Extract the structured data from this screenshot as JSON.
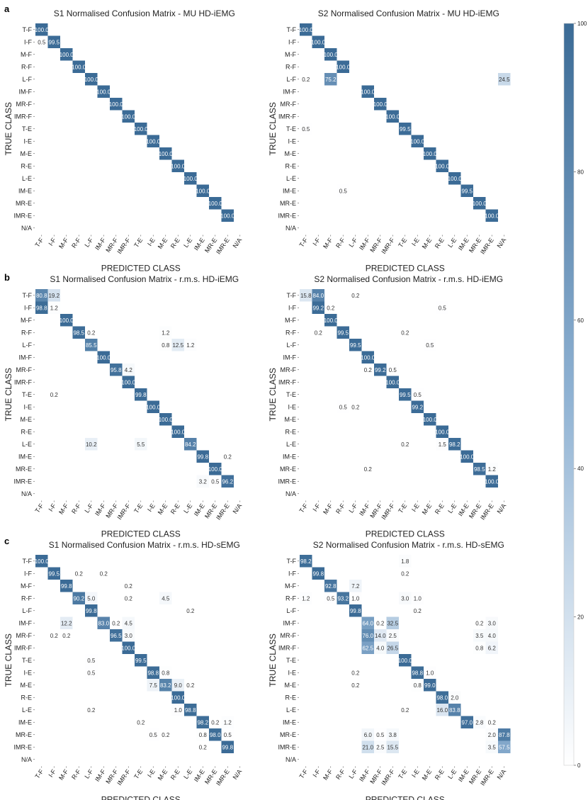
{
  "figure": {
    "panel_letters": [
      "a",
      "b",
      "c"
    ],
    "axis": {
      "xlabel": "PREDICTED CLASS",
      "ylabel": "TRUE CLASS"
    },
    "classes": [
      "T-F",
      "I-F",
      "M-F",
      "R-F",
      "L-F",
      "IM-F",
      "MR-F",
      "IMR-F",
      "T-E",
      "I-E",
      "M-E",
      "R-E",
      "L-E",
      "IM-E",
      "MR-E",
      "IMR-E",
      "N/A"
    ],
    "colorbar": {
      "min": 0,
      "max": 100,
      "ticks": [
        0,
        20,
        40,
        60,
        80,
        100
      ],
      "tick_labels": [
        "0",
        "20",
        "40",
        "60",
        "80",
        "100"
      ],
      "color_low": "#ffffff",
      "color_high": "#3b6b96"
    }
  },
  "chart_data": [
    {
      "type": "heatmap",
      "panel": "a",
      "title": "S1 Normalised Confusion Matrix - MU HD-iEMG",
      "xlabel": "PREDICTED CLASS",
      "ylabel": "TRUE CLASS",
      "cells": [
        [
          0,
          0,
          100.0
        ],
        [
          1,
          0,
          0.5
        ],
        [
          1,
          1,
          99.5
        ],
        [
          2,
          2,
          100.0
        ],
        [
          3,
          3,
          100.0
        ],
        [
          4,
          4,
          100.0
        ],
        [
          5,
          5,
          100.0
        ],
        [
          6,
          6,
          100.0
        ],
        [
          7,
          7,
          100.0
        ],
        [
          8,
          8,
          100.0
        ],
        [
          9,
          9,
          100.0
        ],
        [
          10,
          10,
          100.0
        ],
        [
          11,
          11,
          100.0
        ],
        [
          12,
          12,
          100.0
        ],
        [
          13,
          13,
          100.0
        ],
        [
          14,
          14,
          100.0
        ],
        [
          15,
          15,
          100.0
        ]
      ]
    },
    {
      "type": "heatmap",
      "panel": "a",
      "title": "S2 Normalised Confusion Matrix - MU HD-iEMG",
      "xlabel": "PREDICTED CLASS",
      "ylabel": "TRUE CLASS",
      "cells": [
        [
          0,
          0,
          100.0
        ],
        [
          1,
          1,
          100.0
        ],
        [
          2,
          2,
          100.0
        ],
        [
          3,
          3,
          100.0
        ],
        [
          4,
          0,
          0.2
        ],
        [
          4,
          2,
          75.2
        ],
        [
          4,
          16,
          24.5
        ],
        [
          5,
          5,
          100.0
        ],
        [
          6,
          6,
          100.0
        ],
        [
          7,
          7,
          100.0
        ],
        [
          8,
          0,
          0.5
        ],
        [
          8,
          8,
          99.5
        ],
        [
          9,
          9,
          100.0
        ],
        [
          10,
          10,
          100.0
        ],
        [
          11,
          11,
          100.0
        ],
        [
          12,
          12,
          100.0
        ],
        [
          13,
          3,
          0.5
        ],
        [
          13,
          13,
          99.5
        ],
        [
          14,
          14,
          100.0
        ],
        [
          15,
          15,
          100.0
        ]
      ]
    },
    {
      "type": "heatmap",
      "panel": "b",
      "title": "S1 Normalised Confusion Matrix - r.m.s. HD-iEMG",
      "xlabel": "PREDICTED CLASS",
      "ylabel": "TRUE CLASS",
      "cells": [
        [
          0,
          0,
          80.8
        ],
        [
          0,
          1,
          19.2
        ],
        [
          1,
          0,
          98.8
        ],
        [
          1,
          1,
          1.2
        ],
        [
          2,
          2,
          100.0
        ],
        [
          3,
          3,
          98.5
        ],
        [
          3,
          4,
          0.2
        ],
        [
          3,
          10,
          1.2
        ],
        [
          4,
          4,
          85.5
        ],
        [
          4,
          10,
          0.8
        ],
        [
          4,
          11,
          12.5
        ],
        [
          4,
          12,
          1.2
        ],
        [
          5,
          5,
          100.0
        ],
        [
          6,
          6,
          95.8
        ],
        [
          6,
          7,
          4.2
        ],
        [
          7,
          7,
          100.0
        ],
        [
          8,
          1,
          0.2
        ],
        [
          8,
          8,
          99.8
        ],
        [
          9,
          9,
          100.0
        ],
        [
          10,
          10,
          100.0
        ],
        [
          11,
          11,
          100.0
        ],
        [
          12,
          4,
          10.2
        ],
        [
          12,
          8,
          5.5
        ],
        [
          12,
          12,
          84.2
        ],
        [
          13,
          13,
          99.8
        ],
        [
          13,
          15,
          0.2
        ],
        [
          14,
          14,
          100.0
        ],
        [
          15,
          13,
          3.2
        ],
        [
          15,
          14,
          0.5
        ],
        [
          15,
          15,
          96.2
        ]
      ]
    },
    {
      "type": "heatmap",
      "panel": "b",
      "title": "S2 Normalised Confusion Matrix - r.m.s. HD-iEMG",
      "xlabel": "PREDICTED CLASS",
      "ylabel": "TRUE CLASS",
      "cells": [
        [
          0,
          0,
          15.8
        ],
        [
          0,
          1,
          84.0
        ],
        [
          0,
          4,
          0.2
        ],
        [
          1,
          1,
          99.2
        ],
        [
          1,
          2,
          0.2
        ],
        [
          1,
          11,
          0.5
        ],
        [
          2,
          2,
          100.0
        ],
        [
          3,
          1,
          0.2
        ],
        [
          3,
          3,
          99.5
        ],
        [
          3,
          8,
          0.2
        ],
        [
          4,
          4,
          99.5
        ],
        [
          4,
          10,
          0.5
        ],
        [
          5,
          5,
          100.0
        ],
        [
          6,
          5,
          0.2
        ],
        [
          6,
          6,
          99.2
        ],
        [
          6,
          7,
          0.5
        ],
        [
          7,
          7,
          100.0
        ],
        [
          8,
          8,
          99.5
        ],
        [
          8,
          9,
          0.5
        ],
        [
          9,
          3,
          0.5
        ],
        [
          9,
          4,
          0.2
        ],
        [
          9,
          9,
          99.2
        ],
        [
          10,
          10,
          100.0
        ],
        [
          11,
          11,
          100.0
        ],
        [
          12,
          8,
          0.2
        ],
        [
          12,
          11,
          1.5
        ],
        [
          12,
          12,
          98.2
        ],
        [
          13,
          13,
          100.0
        ],
        [
          14,
          5,
          0.2
        ],
        [
          14,
          14,
          98.5
        ],
        [
          14,
          15,
          1.2
        ],
        [
          15,
          15,
          100.0
        ]
      ]
    },
    {
      "type": "heatmap",
      "panel": "c",
      "title": "S1 Normalised Confusion Matrix - r.m.s. HD-sEMG",
      "xlabel": "PREDICTED CLASS",
      "ylabel": "TRUE CLASS",
      "cells": [
        [
          0,
          0,
          100.0
        ],
        [
          1,
          1,
          99.5
        ],
        [
          1,
          3,
          0.2
        ],
        [
          1,
          5,
          0.2
        ],
        [
          2,
          2,
          99.8
        ],
        [
          2,
          7,
          0.2
        ],
        [
          3,
          3,
          90.2
        ],
        [
          3,
          4,
          5.0
        ],
        [
          3,
          7,
          0.2
        ],
        [
          3,
          10,
          4.5
        ],
        [
          4,
          4,
          99.8
        ],
        [
          4,
          12,
          0.2
        ],
        [
          5,
          2,
          12.2
        ],
        [
          5,
          5,
          83.0
        ],
        [
          5,
          6,
          0.2
        ],
        [
          5,
          7,
          4.5
        ],
        [
          6,
          1,
          0.2
        ],
        [
          6,
          2,
          0.2
        ],
        [
          6,
          6,
          96.5
        ],
        [
          6,
          7,
          3.0
        ],
        [
          7,
          7,
          100.0
        ],
        [
          8,
          4,
          0.5
        ],
        [
          8,
          8,
          99.5
        ],
        [
          9,
          4,
          0.5
        ],
        [
          9,
          9,
          98.8
        ],
        [
          9,
          10,
          0.8
        ],
        [
          10,
          9,
          7.5
        ],
        [
          10,
          10,
          83.2
        ],
        [
          10,
          11,
          9.0
        ],
        [
          10,
          12,
          0.2
        ],
        [
          11,
          11,
          100.0
        ],
        [
          12,
          4,
          0.2
        ],
        [
          12,
          11,
          1.0
        ],
        [
          12,
          12,
          98.8
        ],
        [
          13,
          8,
          0.2
        ],
        [
          13,
          13,
          98.2
        ],
        [
          13,
          14,
          0.2
        ],
        [
          13,
          15,
          1.2
        ],
        [
          14,
          9,
          0.5
        ],
        [
          14,
          10,
          0.2
        ],
        [
          14,
          13,
          0.8
        ],
        [
          14,
          14,
          98.0
        ],
        [
          14,
          15,
          0.5
        ],
        [
          15,
          13,
          0.2
        ],
        [
          15,
          15,
          99.8
        ]
      ]
    },
    {
      "type": "heatmap",
      "panel": "c",
      "title": "S2 Normalised Confusion Matrix - r.m.s. HD-sEMG",
      "xlabel": "PREDICTED CLASS",
      "ylabel": "TRUE CLASS",
      "cells": [
        [
          0,
          0,
          98.2
        ],
        [
          0,
          8,
          1.8
        ],
        [
          1,
          1,
          99.8
        ],
        [
          1,
          8,
          0.2
        ],
        [
          2,
          2,
          92.8
        ],
        [
          2,
          4,
          7.2
        ],
        [
          3,
          0,
          1.2
        ],
        [
          3,
          2,
          0.5
        ],
        [
          3,
          3,
          93.2
        ],
        [
          3,
          4,
          1.0
        ],
        [
          3,
          8,
          3.0
        ],
        [
          3,
          9,
          1.0
        ],
        [
          4,
          4,
          99.8
        ],
        [
          4,
          9,
          0.2
        ],
        [
          5,
          5,
          64.0
        ],
        [
          5,
          6,
          0.2
        ],
        [
          5,
          7,
          32.5
        ],
        [
          5,
          14,
          0.2
        ],
        [
          5,
          15,
          3.0
        ],
        [
          6,
          5,
          76.0
        ],
        [
          6,
          6,
          14.0
        ],
        [
          6,
          7,
          2.5
        ],
        [
          6,
          14,
          3.5
        ],
        [
          6,
          15,
          4.0
        ],
        [
          7,
          5,
          62.5
        ],
        [
          7,
          6,
          4.0
        ],
        [
          7,
          7,
          26.5
        ],
        [
          7,
          14,
          0.8
        ],
        [
          7,
          15,
          6.2
        ],
        [
          8,
          8,
          100.0
        ],
        [
          9,
          4,
          0.2
        ],
        [
          9,
          9,
          98.8
        ],
        [
          9,
          10,
          1.0
        ],
        [
          10,
          4,
          0.2
        ],
        [
          10,
          9,
          0.8
        ],
        [
          10,
          10,
          99.0
        ],
        [
          11,
          11,
          98.0
        ],
        [
          11,
          12,
          2.0
        ],
        [
          12,
          8,
          0.2
        ],
        [
          12,
          11,
          16.0
        ],
        [
          12,
          12,
          83.8
        ],
        [
          13,
          13,
          97.0
        ],
        [
          13,
          14,
          2.8
        ],
        [
          13,
          15,
          0.2
        ],
        [
          14,
          5,
          6.0
        ],
        [
          14,
          6,
          0.5
        ],
        [
          14,
          7,
          3.8
        ],
        [
          14,
          15,
          2.0
        ],
        [
          14,
          16,
          87.8
        ],
        [
          15,
          5,
          21.0
        ],
        [
          15,
          6,
          2.5
        ],
        [
          15,
          7,
          15.5
        ],
        [
          15,
          15,
          3.5
        ],
        [
          15,
          16,
          57.5
        ]
      ]
    }
  ]
}
